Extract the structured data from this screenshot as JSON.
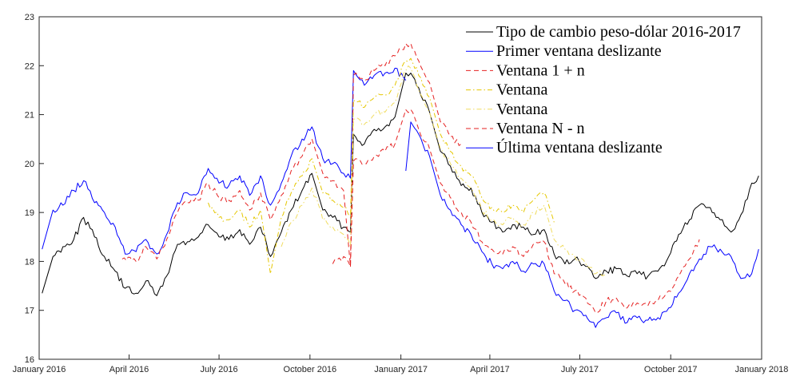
{
  "chart_data": {
    "type": "line",
    "title": "",
    "xlabel": "",
    "ylabel": "",
    "x_ticks": [
      "January 2016",
      "April 2016",
      "July 2016",
      "October 2016",
      "January 2017",
      "April 2017",
      "July 2017",
      "October 2017",
      "January 2018"
    ],
    "x_tick_dates": [
      "2016-01-01",
      "2016-04-01",
      "2016-07-01",
      "2016-10-01",
      "2017-01-01",
      "2017-04-01",
      "2017-07-01",
      "2017-10-01",
      "2018-01-01"
    ],
    "xlim": [
      "2016-01-01",
      "2018-01-01"
    ],
    "y_ticks": [
      16,
      17,
      18,
      19,
      20,
      21,
      22,
      23
    ],
    "ylim": [
      16,
      23
    ],
    "grid": false,
    "legend_position": "top-right",
    "series": [
      {
        "name": "Tipo de cambio peso-dólar 2016-2017",
        "color": "#000000",
        "dash": "solid",
        "x": [
          "2016-01-04",
          "2016-01-15",
          "2016-01-25",
          "2016-02-05",
          "2016-02-15",
          "2016-02-26",
          "2016-03-07",
          "2016-03-18",
          "2016-03-28",
          "2016-04-08",
          "2016-04-18",
          "2016-04-29",
          "2016-05-09",
          "2016-05-20",
          "2016-05-30",
          "2016-06-10",
          "2016-06-20",
          "2016-07-01",
          "2016-07-11",
          "2016-07-22",
          "2016-08-01",
          "2016-08-12",
          "2016-08-22",
          "2016-09-02",
          "2016-09-12",
          "2016-09-23",
          "2016-10-03",
          "2016-10-14",
          "2016-10-24",
          "2016-11-04",
          "2016-11-11",
          "2016-11-14",
          "2016-11-25",
          "2016-12-05",
          "2016-12-16",
          "2016-12-26",
          "2017-01-06",
          "2017-01-11",
          "2017-01-19",
          "2017-01-30",
          "2017-02-10",
          "2017-02-20",
          "2017-03-03",
          "2017-03-13",
          "2017-03-24",
          "2017-04-03",
          "2017-04-14",
          "2017-04-24",
          "2017-05-05",
          "2017-05-15",
          "2017-05-26",
          "2017-06-05",
          "2017-06-16",
          "2017-06-26",
          "2017-07-07",
          "2017-07-17",
          "2017-07-28",
          "2017-08-07",
          "2017-08-18",
          "2017-08-28",
          "2017-09-08",
          "2017-09-18",
          "2017-09-29",
          "2017-10-09",
          "2017-10-20",
          "2017-10-30",
          "2017-11-10",
          "2017-11-20",
          "2017-12-01",
          "2017-12-11",
          "2017-12-22",
          "2017-12-29"
        ],
        "y": [
          17.35,
          18.1,
          18.3,
          18.45,
          18.9,
          18.5,
          18.1,
          17.8,
          17.45,
          17.35,
          17.6,
          17.3,
          17.7,
          18.35,
          18.4,
          18.5,
          18.75,
          18.5,
          18.45,
          18.65,
          18.35,
          18.7,
          18.1,
          18.6,
          19.05,
          19.45,
          19.8,
          19.05,
          18.9,
          18.7,
          18.6,
          20.6,
          20.4,
          20.7,
          20.75,
          20.95,
          21.85,
          21.85,
          21.55,
          21.05,
          20.25,
          19.95,
          19.55,
          19.5,
          19.0,
          18.8,
          18.6,
          18.75,
          18.7,
          18.55,
          18.65,
          18.15,
          17.95,
          18.05,
          17.9,
          17.65,
          17.8,
          17.85,
          17.7,
          17.75,
          17.7,
          17.8,
          18.1,
          18.55,
          18.85,
          19.15,
          19.1,
          18.85,
          18.6,
          18.95,
          19.6,
          19.75
        ]
      },
      {
        "name": "Primer ventana deslizante",
        "color": "#0000ff",
        "dash": "solid",
        "x": [
          "2016-01-04",
          "2016-01-15",
          "2016-01-25",
          "2016-02-05",
          "2016-02-15",
          "2016-02-26",
          "2016-03-07",
          "2016-03-18",
          "2016-03-28",
          "2016-04-08",
          "2016-04-18",
          "2016-04-29",
          "2016-05-09",
          "2016-05-20",
          "2016-05-30",
          "2016-06-10",
          "2016-06-20",
          "2016-07-01",
          "2016-07-11",
          "2016-07-22",
          "2016-08-01",
          "2016-08-12",
          "2016-08-22",
          "2016-09-02",
          "2016-09-12",
          "2016-09-23",
          "2016-10-03",
          "2016-10-14",
          "2016-10-24",
          "2016-11-04",
          "2016-11-11",
          "2016-11-14",
          "2016-11-25",
          "2016-12-05",
          "2016-12-16",
          "2016-12-26",
          "2017-01-06"
        ],
        "y": [
          18.25,
          19.05,
          19.15,
          19.45,
          19.65,
          19.2,
          19.0,
          18.7,
          18.15,
          18.2,
          18.45,
          18.15,
          18.55,
          19.2,
          19.4,
          19.4,
          19.9,
          19.6,
          19.55,
          19.75,
          19.35,
          19.75,
          19.15,
          19.6,
          20.15,
          20.5,
          20.75,
          20.1,
          20.0,
          19.8,
          19.7,
          21.9,
          21.6,
          21.8,
          21.85,
          21.95,
          21.7
        ]
      },
      {
        "name": "Ventana 1 + n",
        "color": "#e52222",
        "dash": "dashed",
        "x": [
          "2016-03-25",
          "2016-04-08",
          "2016-04-18",
          "2016-04-29",
          "2016-05-09",
          "2016-05-20",
          "2016-05-30",
          "2016-06-10",
          "2016-06-20",
          "2016-07-01",
          "2016-07-11",
          "2016-07-22",
          "2016-08-01",
          "2016-08-12",
          "2016-08-22",
          "2016-09-02",
          "2016-09-12",
          "2016-09-23",
          "2016-10-03",
          "2016-10-14",
          "2016-10-24",
          "2016-11-04",
          "2016-11-11",
          "2016-11-14",
          "2016-11-25",
          "2016-12-05",
          "2016-12-16",
          "2016-12-26",
          "2017-01-06",
          "2017-01-11",
          "2017-01-19",
          "2017-01-30",
          "2017-02-10",
          "2017-02-20",
          "2017-03-03"
        ],
        "y": [
          18.05,
          18.0,
          18.3,
          18.05,
          18.45,
          19.0,
          19.2,
          19.25,
          19.6,
          19.3,
          19.25,
          19.45,
          19.05,
          19.4,
          18.85,
          19.35,
          19.85,
          20.15,
          20.5,
          19.8,
          19.65,
          19.45,
          17.9,
          21.8,
          21.7,
          21.9,
          22.0,
          22.2,
          22.45,
          22.45,
          22.1,
          21.65,
          20.85,
          20.55,
          20.4
        ]
      },
      {
        "name": "Ventana",
        "color": "#e5c700",
        "dash": "dashdot",
        "x": [
          "2016-06-20",
          "2016-07-01",
          "2016-07-11",
          "2016-07-22",
          "2016-08-01",
          "2016-08-12",
          "2016-08-22",
          "2016-09-02",
          "2016-09-12",
          "2016-09-23",
          "2016-10-03",
          "2016-10-14",
          "2016-10-24",
          "2016-11-04",
          "2016-11-11",
          "2016-11-14",
          "2016-11-25",
          "2016-12-05",
          "2016-12-16",
          "2016-12-26",
          "2017-01-06",
          "2017-01-11",
          "2017-01-19",
          "2017-01-30",
          "2017-02-10",
          "2017-02-20",
          "2017-03-03",
          "2017-03-13",
          "2017-03-24",
          "2017-04-03",
          "2017-04-14",
          "2017-04-24",
          "2017-05-05",
          "2017-05-15",
          "2017-05-26",
          "2017-06-05"
        ],
        "y": [
          19.2,
          18.9,
          18.85,
          19.05,
          18.7,
          19.05,
          17.75,
          18.9,
          19.4,
          19.75,
          20.1,
          19.4,
          19.25,
          19.1,
          18.9,
          21.3,
          21.15,
          21.35,
          21.4,
          21.6,
          22.1,
          22.15,
          21.8,
          21.35,
          20.6,
          20.25,
          19.95,
          19.75,
          19.3,
          19.1,
          19.0,
          19.15,
          19.0,
          19.25,
          19.4,
          18.8
        ]
      },
      {
        "name": "Ventana",
        "color": "#f0dc60",
        "dash": "dashdot",
        "x": [
          "2016-09-02",
          "2016-09-12",
          "2016-09-23",
          "2016-10-03",
          "2016-10-14",
          "2016-10-24",
          "2016-11-04",
          "2016-11-11",
          "2016-11-14",
          "2016-11-25",
          "2016-12-05",
          "2016-12-16",
          "2016-12-26",
          "2017-01-06",
          "2017-01-11",
          "2017-01-19",
          "2017-01-30",
          "2017-02-10",
          "2017-02-20",
          "2017-03-03",
          "2017-03-13",
          "2017-03-24",
          "2017-04-03",
          "2017-04-14",
          "2017-04-24",
          "2017-05-05",
          "2017-05-15",
          "2017-05-26",
          "2017-06-05",
          "2017-06-16",
          "2017-06-26",
          "2017-07-07",
          "2017-07-17",
          "2017-07-28"
        ],
        "y": [
          18.3,
          18.8,
          19.15,
          19.5,
          18.85,
          18.7,
          18.55,
          18.3,
          20.9,
          20.8,
          21.0,
          21.05,
          21.25,
          21.9,
          21.95,
          21.5,
          21.05,
          20.3,
          20.0,
          19.7,
          19.5,
          19.05,
          18.85,
          18.75,
          18.9,
          18.75,
          19.0,
          19.15,
          18.45,
          18.25,
          18.1,
          17.95,
          17.75,
          17.75
        ]
      },
      {
        "name": "Ventana N - n",
        "color": "#e52222",
        "dash": "dashed",
        "x": [
          "2016-10-24",
          "2016-11-04",
          "2016-11-11",
          "2016-11-14",
          "2016-11-25",
          "2016-12-05",
          "2016-12-16",
          "2016-12-26",
          "2017-01-06",
          "2017-01-11",
          "2017-01-19",
          "2017-01-30",
          "2017-02-10",
          "2017-02-20",
          "2017-03-03",
          "2017-03-13",
          "2017-03-24",
          "2017-04-03",
          "2017-04-14",
          "2017-04-24",
          "2017-05-05",
          "2017-05-15",
          "2017-05-26",
          "2017-06-05",
          "2017-06-16",
          "2017-06-26",
          "2017-07-07",
          "2017-07-17",
          "2017-07-28",
          "2017-08-07",
          "2017-08-18",
          "2017-08-28",
          "2017-09-08",
          "2017-09-18",
          "2017-09-29",
          "2017-10-09",
          "2017-10-20",
          "2017-10-30"
        ],
        "y": [
          17.95,
          18.1,
          17.9,
          20.05,
          20.0,
          20.15,
          20.25,
          20.4,
          21.1,
          21.1,
          20.7,
          20.3,
          19.6,
          19.3,
          19.0,
          18.8,
          18.4,
          18.25,
          18.15,
          18.3,
          18.1,
          18.35,
          18.4,
          17.75,
          17.55,
          17.4,
          17.25,
          16.95,
          17.2,
          17.25,
          17.05,
          17.15,
          17.1,
          17.2,
          17.4,
          17.7,
          18.05,
          18.45
        ]
      },
      {
        "name": "Última ventana deslizante",
        "color": "#0000ff",
        "dash": "solid",
        "x": [
          "2017-01-06",
          "2017-01-11",
          "2017-01-19",
          "2017-01-30",
          "2017-02-10",
          "2017-02-20",
          "2017-03-03",
          "2017-03-13",
          "2017-03-24",
          "2017-04-03",
          "2017-04-14",
          "2017-04-24",
          "2017-05-05",
          "2017-05-15",
          "2017-05-26",
          "2017-06-05",
          "2017-06-16",
          "2017-06-26",
          "2017-07-07",
          "2017-07-17",
          "2017-07-28",
          "2017-08-07",
          "2017-08-18",
          "2017-08-28",
          "2017-09-08",
          "2017-09-18",
          "2017-09-29",
          "2017-10-09",
          "2017-10-20",
          "2017-10-30",
          "2017-11-10",
          "2017-11-20",
          "2017-12-01",
          "2017-12-11",
          "2017-12-22",
          "2017-12-29"
        ],
        "y": [
          19.85,
          20.85,
          20.6,
          20.15,
          19.35,
          19.05,
          18.75,
          18.55,
          18.2,
          17.95,
          17.85,
          18.0,
          17.8,
          17.95,
          17.95,
          17.4,
          17.2,
          17.0,
          16.9,
          16.65,
          16.85,
          16.95,
          16.75,
          16.85,
          16.8,
          16.85,
          17.05,
          17.35,
          17.75,
          18.05,
          18.3,
          18.25,
          18.1,
          17.65,
          17.75,
          18.25
        ]
      }
    ]
  }
}
